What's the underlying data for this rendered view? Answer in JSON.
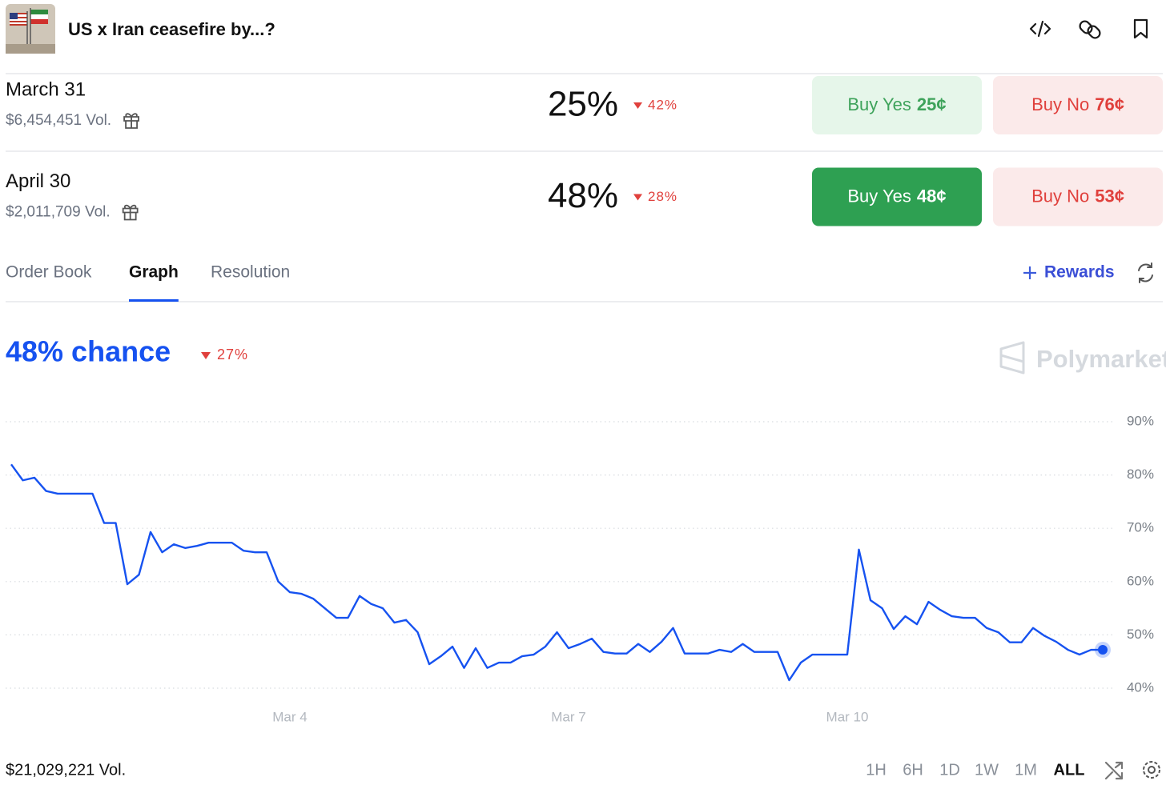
{
  "header": {
    "title": "US x Iran ceasefire by...?"
  },
  "markets": [
    {
      "name": "March 31",
      "volume": "$6,454,451 Vol.",
      "chance": "25%",
      "change": "42%",
      "buy_yes": "Buy Yes",
      "yes_price": "25¢",
      "buy_no": "Buy No",
      "no_price": "76¢"
    },
    {
      "name": "April 30",
      "volume": "$2,011,709 Vol.",
      "chance": "48%",
      "change": "28%",
      "buy_yes": "Buy Yes",
      "yes_price": "48¢",
      "buy_no": "Buy No",
      "no_price": "53¢"
    }
  ],
  "tabs": {
    "items": [
      "Order Book",
      "Graph",
      "Resolution"
    ],
    "active": 1,
    "rewards": "Rewards"
  },
  "graph_header": {
    "chance": "48% chance",
    "change": "27%",
    "brand": "Polymarket"
  },
  "chart_data": {
    "type": "line",
    "categories": [
      null,
      null,
      null,
      null,
      null,
      null,
      null,
      null,
      null,
      null,
      null,
      null,
      null,
      null,
      null,
      null,
      null,
      null,
      null,
      null,
      null,
      null,
      null,
      null,
      "Mar 4",
      null,
      null,
      null,
      null,
      null,
      null,
      null,
      null,
      null,
      null,
      null,
      null,
      null,
      null,
      null,
      null,
      null,
      null,
      null,
      null,
      null,
      null,
      null,
      "Mar 7",
      null,
      null,
      null,
      null,
      null,
      null,
      null,
      null,
      null,
      null,
      null,
      null,
      null,
      null,
      null,
      null,
      null,
      null,
      null,
      null,
      null,
      null,
      null,
      "Mar 10",
      null,
      null,
      null,
      null,
      null,
      null,
      null,
      null,
      null,
      null,
      null,
      null,
      null,
      null,
      null,
      null,
      null,
      null,
      null,
      null,
      null,
      null
    ],
    "values": [
      82,
      79,
      79.5,
      77,
      76.5,
      76.5,
      76.5,
      76.5,
      71,
      71,
      59.5,
      61.3,
      69.3,
      65.5,
      67,
      66.3,
      66.7,
      67.3,
      67.3,
      67.3,
      65.8,
      65.5,
      65.5,
      60,
      58,
      57.7,
      56.8,
      55,
      53.2,
      53.2,
      57.3,
      55.8,
      55,
      52.3,
      52.8,
      50.5,
      44.5,
      46,
      47.8,
      43.8,
      47.5,
      43.8,
      44.8,
      44.8,
      46,
      46.3,
      47.8,
      50.5,
      47.5,
      48.3,
      49.3,
      46.8,
      46.5,
      46.5,
      48.3,
      46.8,
      48.7,
      51.3,
      46.5,
      46.5,
      46.5,
      47.2,
      46.8,
      48.3,
      46.8,
      46.8,
      46.8,
      41.5,
      44.8,
      46.3,
      46.3,
      46.3,
      46.3,
      66,
      56.5,
      55,
      51.1,
      53.5,
      52,
      56.2,
      54.7,
      53.5,
      53.2,
      53.2,
      51.3,
      50.5,
      48.6,
      48.6,
      51.3,
      49.8,
      48.7,
      47.2,
      46.3,
      47.2,
      47.2
    ],
    "color": "#1652f0",
    "ylim": [
      40,
      90
    ],
    "yticks": [
      {
        "value": 40,
        "label": "40%"
      },
      {
        "value": 50,
        "label": "50%"
      },
      {
        "value": 60,
        "label": "60%"
      },
      {
        "value": 70,
        "label": "70%"
      },
      {
        "value": 80,
        "label": "80%"
      },
      {
        "value": 90,
        "label": "90%"
      }
    ],
    "grid": true
  },
  "footer": {
    "volume": "$21,029,221 Vol.",
    "ranges": [
      "1H",
      "6H",
      "1D",
      "1W",
      "1M",
      "ALL"
    ],
    "active_range": 5
  }
}
